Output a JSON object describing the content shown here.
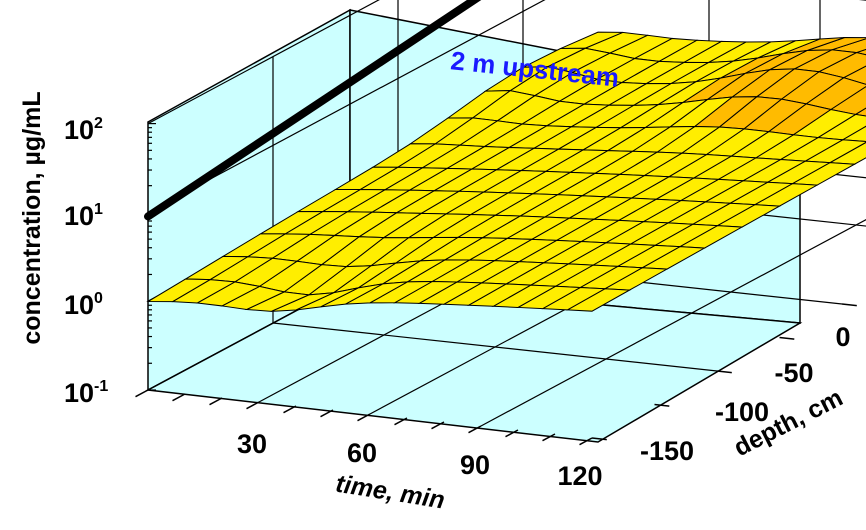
{
  "chart_data": {
    "type": "surface",
    "title": "2 m upstream",
    "zlabel": "concentration, µg/mL",
    "xlabel": "time, min",
    "ylabel": "depth, cm",
    "z_scale": "log",
    "zlim": [
      0.1,
      100
    ],
    "z_ticks": [
      {
        "base": "10",
        "exp": "-1"
      },
      {
        "base": "10",
        "exp": "0"
      },
      {
        "base": "10",
        "exp": "1"
      },
      {
        "base": "10",
        "exp": "2"
      }
    ],
    "x_ticks": [
      "30",
      "60",
      "90",
      "120"
    ],
    "y_ticks": [
      "0",
      "-50",
      "-100",
      "-150"
    ],
    "xlim": [
      0,
      120
    ],
    "ylim": [
      -180,
      0
    ],
    "reference_line": {
      "description": "surface concentration",
      "time": [
        0,
        30,
        120
      ],
      "concentration": [
        9,
        40,
        40
      ]
    },
    "surface_color": "#ffee00",
    "surface_color_deep": "#ffbb00",
    "panel_color": "#ccffff",
    "line_color": "#000000",
    "title_color": "#1a1aff",
    "grid": true
  }
}
